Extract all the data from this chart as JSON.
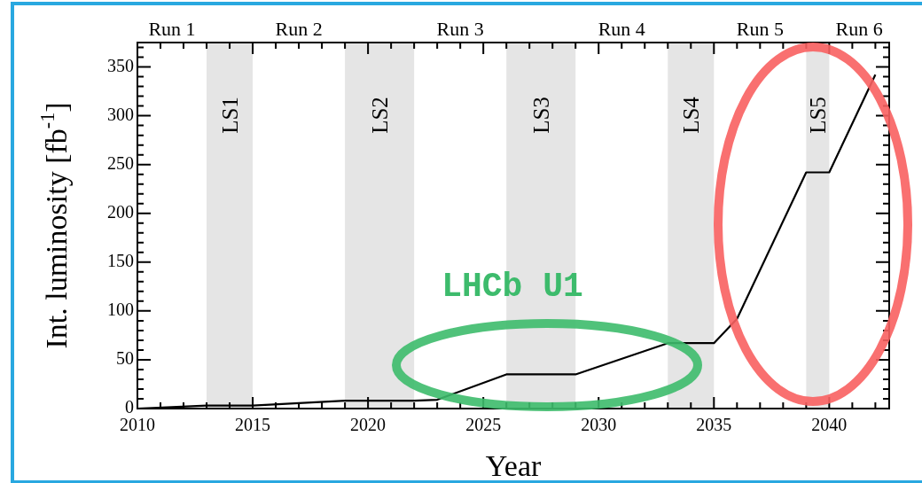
{
  "chart_data": {
    "type": "line",
    "xlabel": "Year",
    "ylabel": "Int. luminosity [fb$^{-1}$]",
    "series": [
      {
        "color": "#000000",
        "x": [
          2010,
          2013,
          2015,
          2019,
          2022,
          2023,
          2026,
          2029,
          2033,
          2035,
          2036,
          2039,
          2040,
          2042
        ],
        "values": [
          0,
          3,
          3,
          8,
          8,
          9,
          35,
          35,
          67,
          67,
          92,
          242,
          242,
          342
        ]
      }
    ],
    "xlim": [
      2010,
      2042.6
    ],
    "xticks": [
      2010,
      {
        "value": 2011,
        "label": null
      },
      {
        "value": 2012,
        "label": null
      },
      {
        "value": 2013,
        "label": null
      },
      {
        "value": 2014,
        "label": null
      },
      2015,
      {
        "value": 2016,
        "label": null
      },
      {
        "value": 2017,
        "label": null
      },
      {
        "value": 2018,
        "label": null
      },
      {
        "value": 2019,
        "label": null
      },
      2020,
      {
        "value": 2021,
        "label": null
      },
      {
        "value": 2022,
        "label": null
      },
      {
        "value": 2023,
        "label": null
      },
      {
        "value": 2024,
        "label": null
      },
      2025,
      {
        "value": 2026,
        "label": null
      },
      {
        "value": 2027,
        "label": null
      },
      {
        "value": 2028,
        "label": null
      },
      {
        "value": 2029,
        "label": null
      },
      2030,
      {
        "value": 2031,
        "label": null
      },
      {
        "value": 2032,
        "label": null
      },
      {
        "value": 2033,
        "label": null
      },
      {
        "value": 2034,
        "label": null
      },
      2035,
      {
        "value": 2036,
        "label": null
      },
      {
        "value": 2037,
        "label": null
      },
      {
        "value": 2038,
        "label": null
      },
      {
        "value": 2039,
        "label": null
      },
      2040,
      {
        "value": 2041,
        "label": null
      },
      {
        "value": 2042,
        "label": null
      }
    ],
    "ylim": [
      0,
      375
    ],
    "yticks": [
      0,
      {
        "value": 10,
        "label": null
      },
      {
        "value": 20,
        "label": null
      },
      {
        "value": 30,
        "label": null
      },
      {
        "value": 40,
        "label": null
      },
      50,
      {
        "value": 60,
        "label": null
      },
      {
        "value": 70,
        "label": null
      },
      {
        "value": 80,
        "label": null
      },
      {
        "value": 90,
        "label": null
      },
      100,
      {
        "value": 110,
        "label": null
      },
      {
        "value": 120,
        "label": null
      },
      {
        "value": 130,
        "label": null
      },
      {
        "value": 140,
        "label": null
      },
      150,
      {
        "value": 160,
        "label": null
      },
      {
        "value": 170,
        "label": null
      },
      {
        "value": 180,
        "label": null
      },
      {
        "value": 190,
        "label": null
      },
      200,
      {
        "value": 210,
        "label": null
      },
      {
        "value": 220,
        "label": null
      },
      {
        "value": 230,
        "label": null
      },
      {
        "value": 240,
        "label": null
      },
      250,
      {
        "value": 260,
        "label": null
      },
      {
        "value": 270,
        "label": null
      },
      {
        "value": 280,
        "label": null
      },
      {
        "value": 290,
        "label": null
      },
      300,
      {
        "value": 310,
        "label": null
      },
      {
        "value": 320,
        "label": null
      },
      {
        "value": 330,
        "label": null
      },
      {
        "value": 340,
        "label": null
      },
      350,
      {
        "value": 360,
        "label": null
      },
      {
        "value": 370,
        "label": null
      }
    ],
    "bands": [
      {
        "axis": "x",
        "from": 2013,
        "to": 2015,
        "label": "LS1",
        "color": "#e5e5e5"
      },
      {
        "axis": "x",
        "from": 2019,
        "to": 2022,
        "label": "LS2",
        "color": "#e5e5e5"
      },
      {
        "axis": "x",
        "from": 2026,
        "to": 2029,
        "label": "LS3",
        "color": "#e5e5e5"
      },
      {
        "axis": "x",
        "from": 2033,
        "to": 2035,
        "label": "LS4",
        "color": "#e5e5e5"
      },
      {
        "axis": "x",
        "from": 2039,
        "to": 2040,
        "label": "LS5",
        "color": "#e5e5e5"
      }
    ],
    "annotations": [
      "Run 1",
      "Run 2",
      "Run 3",
      "Run 4",
      "Run 5",
      "Run 6",
      "LHCb U1"
    ],
    "grid": false,
    "legend": false,
    "marker": "none",
    "line_style": "solid"
  }
}
